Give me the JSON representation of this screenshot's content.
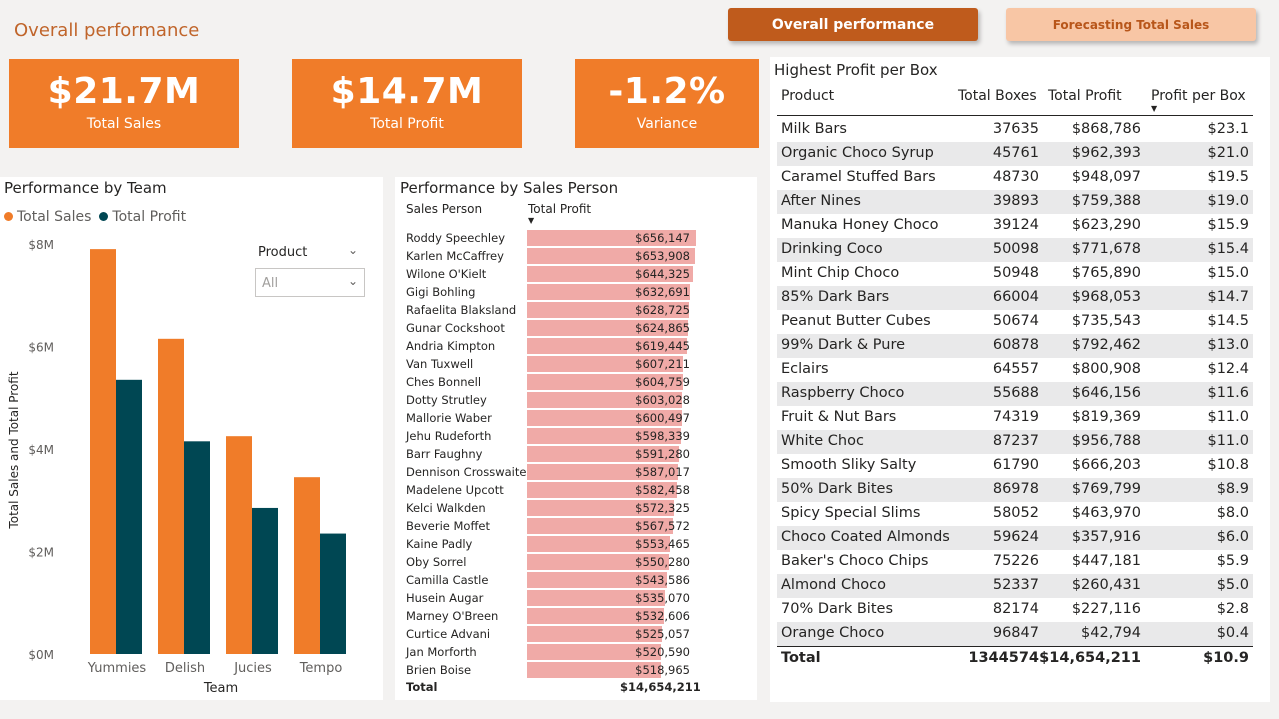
{
  "page": {
    "title": "Overall performance",
    "nav": {
      "overall_label": "Overall performance",
      "forecast_label": "Forecasting Total Sales"
    }
  },
  "kpis": [
    {
      "value": "$21.7M",
      "label": "Total Sales"
    },
    {
      "value": "$14.7M",
      "label": "Total Profit"
    },
    {
      "value": "-1.2%",
      "label": "Variance"
    }
  ],
  "team_chart": {
    "title": "Performance by Team",
    "slicer": {
      "label": "Product",
      "value": "All"
    },
    "colors": {
      "sales": "#f07c29",
      "profit": "#004753"
    },
    "chart_data": {
      "type": "bar",
      "categories": [
        "Yummies",
        "Delish",
        "Jucies",
        "Tempo"
      ],
      "series": [
        {
          "name": "Total Sales",
          "values": [
            7.9,
            6.15,
            4.25,
            3.45
          ]
        },
        {
          "name": "Total Profit",
          "values": [
            5.35,
            4.15,
            2.85,
            2.35
          ]
        }
      ],
      "xlabel": "Team",
      "ylabel": "Total Sales and Total Profit",
      "ylim": [
        0,
        8
      ],
      "yticks": [
        "$0M",
        "$2M",
        "$4M",
        "$6M",
        "$8M"
      ],
      "legend": "top-left"
    }
  },
  "sales_person": {
    "title": "Performance by Sales Person",
    "col_name": "Sales Person",
    "col_value": "Total Profit",
    "bar_color": "#f0aaa7",
    "max_value": 656147,
    "rows": [
      {
        "name": "Roddy Speechley",
        "value": 656147,
        "label": "$656,147"
      },
      {
        "name": "Karlen McCaffrey",
        "value": 653908,
        "label": "$653,908"
      },
      {
        "name": "Wilone O'Kielt",
        "value": 644325,
        "label": "$644,325"
      },
      {
        "name": "Gigi Bohling",
        "value": 632691,
        "label": "$632,691"
      },
      {
        "name": "Rafaelita Blaksland",
        "value": 628725,
        "label": "$628,725"
      },
      {
        "name": "Gunar Cockshoot",
        "value": 624865,
        "label": "$624,865"
      },
      {
        "name": "Andria Kimpton",
        "value": 619445,
        "label": "$619,445"
      },
      {
        "name": "Van Tuxwell",
        "value": 607211,
        "label": "$607,211"
      },
      {
        "name": "Ches Bonnell",
        "value": 604759,
        "label": "$604,759"
      },
      {
        "name": "Dotty Strutley",
        "value": 603028,
        "label": "$603,028"
      },
      {
        "name": "Mallorie Waber",
        "value": 600497,
        "label": "$600,497"
      },
      {
        "name": "Jehu Rudeforth",
        "value": 598339,
        "label": "$598,339"
      },
      {
        "name": "Barr Faughny",
        "value": 591280,
        "label": "$591,280"
      },
      {
        "name": "Dennison Crosswaite",
        "value": 587017,
        "label": "$587,017"
      },
      {
        "name": "Madelene Upcott",
        "value": 582458,
        "label": "$582,458"
      },
      {
        "name": "Kelci Walkden",
        "value": 572325,
        "label": "$572,325"
      },
      {
        "name": "Beverie Moffet",
        "value": 567572,
        "label": "$567,572"
      },
      {
        "name": "Kaine Padly",
        "value": 553465,
        "label": "$553,465"
      },
      {
        "name": "Oby Sorrel",
        "value": 550280,
        "label": "$550,280"
      },
      {
        "name": "Camilla Castle",
        "value": 543586,
        "label": "$543,586"
      },
      {
        "name": "Husein Augar",
        "value": 535070,
        "label": "$535,070"
      },
      {
        "name": "Marney O'Breen",
        "value": 532606,
        "label": "$532,606"
      },
      {
        "name": "Curtice Advani",
        "value": 525057,
        "label": "$525,057"
      },
      {
        "name": "Jan Morforth",
        "value": 520590,
        "label": "$520,590"
      },
      {
        "name": "Brien Boise",
        "value": 518965,
        "label": "$518,965"
      }
    ],
    "total_label": "Total",
    "total_value": "$14,654,211"
  },
  "profit_table": {
    "title": "Highest Profit per Box",
    "headers": [
      "Product",
      "Total Boxes",
      "Total Profit",
      "Profit per Box"
    ],
    "rows": [
      [
        "Milk Bars",
        "37635",
        "$868,786",
        "$23.1"
      ],
      [
        "Organic Choco Syrup",
        "45761",
        "$962,393",
        "$21.0"
      ],
      [
        "Caramel Stuffed Bars",
        "48730",
        "$948,097",
        "$19.5"
      ],
      [
        "After Nines",
        "39893",
        "$759,388",
        "$19.0"
      ],
      [
        "Manuka Honey Choco",
        "39124",
        "$623,290",
        "$15.9"
      ],
      [
        "Drinking Coco",
        "50098",
        "$771,678",
        "$15.4"
      ],
      [
        "Mint Chip Choco",
        "50948",
        "$765,890",
        "$15.0"
      ],
      [
        "85% Dark Bars",
        "66004",
        "$968,053",
        "$14.7"
      ],
      [
        "Peanut Butter Cubes",
        "50674",
        "$735,543",
        "$14.5"
      ],
      [
        "99% Dark & Pure",
        "60878",
        "$792,462",
        "$13.0"
      ],
      [
        "Eclairs",
        "64557",
        "$800,908",
        "$12.4"
      ],
      [
        "Raspberry Choco",
        "55688",
        "$646,156",
        "$11.6"
      ],
      [
        "Fruit & Nut Bars",
        "74319",
        "$819,369",
        "$11.0"
      ],
      [
        "White Choc",
        "87237",
        "$956,788",
        "$11.0"
      ],
      [
        "Smooth Sliky Salty",
        "61790",
        "$666,203",
        "$10.8"
      ],
      [
        "50% Dark Bites",
        "86978",
        "$769,799",
        "$8.9"
      ],
      [
        "Spicy Special Slims",
        "58052",
        "$463,970",
        "$8.0"
      ],
      [
        "Choco Coated Almonds",
        "59624",
        "$357,916",
        "$6.0"
      ],
      [
        "Baker's Choco Chips",
        "75226",
        "$447,181",
        "$5.9"
      ],
      [
        "Almond Choco",
        "52337",
        "$260,431",
        "$5.0"
      ],
      [
        "70% Dark Bites",
        "82174",
        "$227,116",
        "$2.8"
      ],
      [
        "Orange Choco",
        "96847",
        "$42,794",
        "$0.4"
      ]
    ],
    "total": [
      "Total",
      "1344574",
      "$14,654,211",
      "$10.9"
    ]
  }
}
